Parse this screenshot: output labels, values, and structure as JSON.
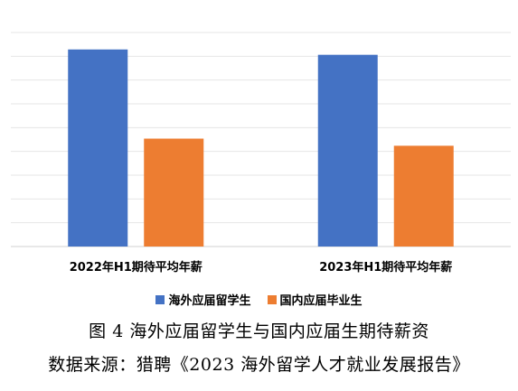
{
  "chart_data": {
    "type": "bar",
    "categories": [
      "2022年H1期待平均年薪",
      "2023年H1期待平均年薪"
    ],
    "series": [
      {
        "name": "海外应届留学生",
        "color": "#4472C4",
        "values": [
          22.1,
          21.5
        ]
      },
      {
        "name": "国内应届毕业生",
        "color": "#ED7D31",
        "values": [
          12.1,
          11.3
        ]
      }
    ],
    "ylim": [
      0,
      24
    ],
    "grid": true,
    "legend_position": "bottom"
  },
  "captions": {
    "figure": "图 4  海外应届留学生与国内应届生期待薪资",
    "source": "数据来源：猎聘《2023 海外留学人才就业发展报告》"
  }
}
